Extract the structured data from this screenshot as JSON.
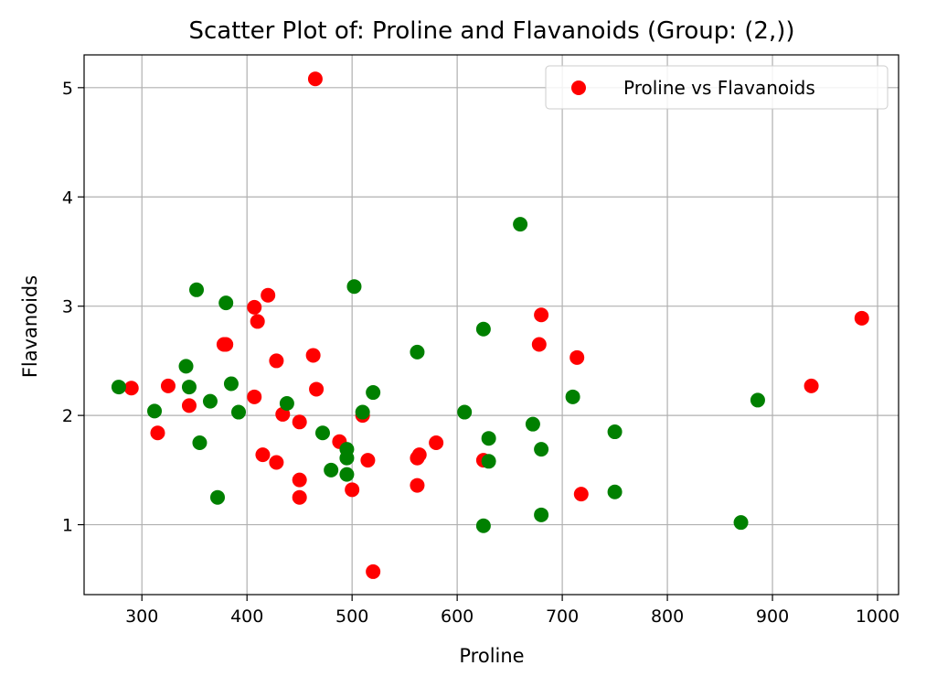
{
  "chart_data": {
    "type": "scatter",
    "title": "Scatter Plot of: Proline and Flavanoids (Group: (2,))",
    "xlabel": "Proline",
    "ylabel": "Flavanoids",
    "xlim": [
      245,
      1020
    ],
    "ylim": [
      0.36,
      5.3
    ],
    "xticks": [
      300,
      400,
      500,
      600,
      700,
      800,
      900,
      1000
    ],
    "yticks": [
      1,
      2,
      3,
      4,
      5
    ],
    "grid": true,
    "legend": {
      "placement": "top-right",
      "entries": [
        "Proline vs Flavanoids"
      ]
    },
    "series": [
      {
        "name": "Proline vs Flavanoids",
        "color": "#ff0000",
        "points": [
          {
            "x": 290,
            "y": 2.25
          },
          {
            "x": 315,
            "y": 1.84
          },
          {
            "x": 325,
            "y": 2.27
          },
          {
            "x": 345,
            "y": 2.09
          },
          {
            "x": 378,
            "y": 2.65
          },
          {
            "x": 380,
            "y": 2.65
          },
          {
            "x": 407,
            "y": 2.99
          },
          {
            "x": 407,
            "y": 2.17
          },
          {
            "x": 410,
            "y": 2.86
          },
          {
            "x": 415,
            "y": 1.64
          },
          {
            "x": 420,
            "y": 3.1
          },
          {
            "x": 428,
            "y": 2.5
          },
          {
            "x": 428,
            "y": 1.57
          },
          {
            "x": 434,
            "y": 2.01
          },
          {
            "x": 450,
            "y": 1.94
          },
          {
            "x": 450,
            "y": 1.41
          },
          {
            "x": 450,
            "y": 1.25
          },
          {
            "x": 463,
            "y": 2.55
          },
          {
            "x": 465,
            "y": 5.08
          },
          {
            "x": 466,
            "y": 2.24
          },
          {
            "x": 488,
            "y": 1.76
          },
          {
            "x": 500,
            "y": 1.32
          },
          {
            "x": 510,
            "y": 2.0
          },
          {
            "x": 515,
            "y": 1.59
          },
          {
            "x": 520,
            "y": 0.57
          },
          {
            "x": 562,
            "y": 1.61
          },
          {
            "x": 562,
            "y": 1.36
          },
          {
            "x": 564,
            "y": 1.64
          },
          {
            "x": 580,
            "y": 1.75
          },
          {
            "x": 625,
            "y": 1.59
          },
          {
            "x": 678,
            "y": 2.65
          },
          {
            "x": 680,
            "y": 2.92
          },
          {
            "x": 714,
            "y": 2.53
          },
          {
            "x": 718,
            "y": 1.28
          },
          {
            "x": 937,
            "y": 2.27
          },
          {
            "x": 985,
            "y": 2.89
          }
        ]
      },
      {
        "color": "#008000",
        "points": [
          {
            "x": 278,
            "y": 2.26
          },
          {
            "x": 312,
            "y": 2.04
          },
          {
            "x": 342,
            "y": 2.45
          },
          {
            "x": 345,
            "y": 2.26
          },
          {
            "x": 352,
            "y": 3.15
          },
          {
            "x": 355,
            "y": 1.75
          },
          {
            "x": 365,
            "y": 2.13
          },
          {
            "x": 372,
            "y": 1.25
          },
          {
            "x": 380,
            "y": 3.03
          },
          {
            "x": 385,
            "y": 2.29
          },
          {
            "x": 392,
            "y": 2.03
          },
          {
            "x": 438,
            "y": 2.11
          },
          {
            "x": 472,
            "y": 1.84
          },
          {
            "x": 480,
            "y": 1.5
          },
          {
            "x": 495,
            "y": 1.69
          },
          {
            "x": 495,
            "y": 1.61
          },
          {
            "x": 495,
            "y": 1.46
          },
          {
            "x": 502,
            "y": 3.18
          },
          {
            "x": 510,
            "y": 2.03
          },
          {
            "x": 520,
            "y": 2.21
          },
          {
            "x": 562,
            "y": 2.58
          },
          {
            "x": 607,
            "y": 2.03
          },
          {
            "x": 625,
            "y": 2.79
          },
          {
            "x": 625,
            "y": 0.99
          },
          {
            "x": 630,
            "y": 1.79
          },
          {
            "x": 630,
            "y": 1.58
          },
          {
            "x": 660,
            "y": 3.75
          },
          {
            "x": 672,
            "y": 1.92
          },
          {
            "x": 680,
            "y": 1.69
          },
          {
            "x": 680,
            "y": 1.09
          },
          {
            "x": 710,
            "y": 2.17
          },
          {
            "x": 750,
            "y": 1.85
          },
          {
            "x": 750,
            "y": 1.3
          },
          {
            "x": 870,
            "y": 1.02
          },
          {
            "x": 886,
            "y": 2.14
          }
        ]
      }
    ]
  }
}
